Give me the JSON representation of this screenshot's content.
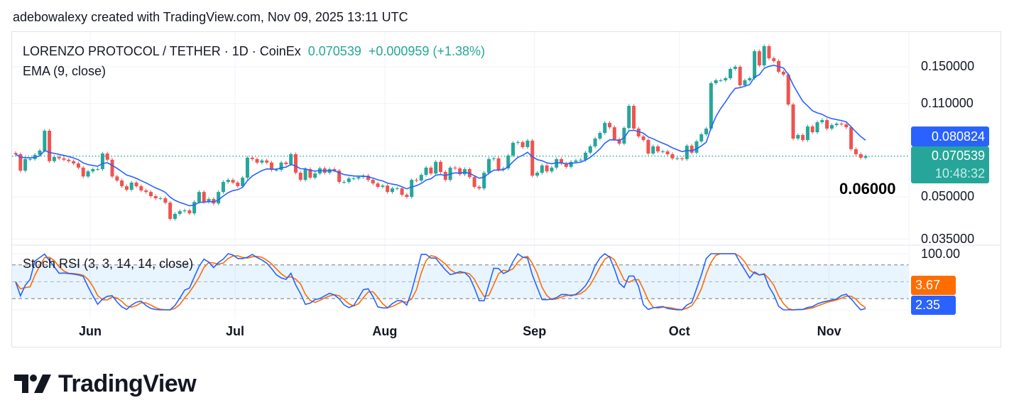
{
  "watermark": "adebowalexy created with TradingView.com, Nov 09, 2025 13:11 UTC",
  "legend": {
    "symbol": "LORENZO PROTOCOL / TETHER · 1D · CoinEx",
    "price": "0.070539",
    "change": "+0.000959 (+1.38%)",
    "ema": "EMA (9, close)",
    "stoch": "Stoch RSI (3, 3, 14, 14, close)"
  },
  "price_axis": {
    "ticks": [
      "0.150000",
      "0.110000",
      "0.050000",
      "0.035000"
    ],
    "tick_values": [
      0.15,
      0.11,
      0.05,
      0.035
    ],
    "scale": "log"
  },
  "stoch_axis": {
    "ticks": [
      "100.00"
    ],
    "band": [
      20,
      80
    ],
    "mid": 50
  },
  "time_axis": {
    "ticks": [
      "Jun",
      "Jul",
      "Aug",
      "Sep",
      "Oct",
      "Nov"
    ]
  },
  "tags": {
    "ema": "0.080824",
    "last_price": "0.070539",
    "countdown": "10:48:32",
    "stoch_d": "3.67",
    "stoch_k": "2.35"
  },
  "annotation": "0.06000",
  "logo": "TradingView",
  "colors": {
    "up": "#26a69a",
    "down": "#ef5350",
    "ema": "#2962ff",
    "stoch_k": "#2962ff",
    "stoch_d": "#ff6d00"
  },
  "chart_data": {
    "type": "candlestick",
    "interval": "1D",
    "yscale": "log",
    "ylim": [
      0.032,
      0.2
    ],
    "closes": [
      0.0717,
      0.0624,
      0.0688,
      0.0688,
      0.0713,
      0.0739,
      0.0874,
      0.0676,
      0.07,
      0.0692,
      0.0684,
      0.0676,
      0.0663,
      0.064,
      0.0594,
      0.062,
      0.0632,
      0.0632,
      0.0721,
      0.0684,
      0.0594,
      0.0574,
      0.0547,
      0.0531,
      0.0564,
      0.0547,
      0.0528,
      0.0521,
      0.0503,
      0.0494,
      0.0494,
      0.0476,
      0.0415,
      0.0433,
      0.0443,
      0.0446,
      0.0435,
      0.0479,
      0.0521,
      0.0479,
      0.0491,
      0.0473,
      0.0521,
      0.0567,
      0.0577,
      0.0564,
      0.0547,
      0.0588,
      0.0696,
      0.0688,
      0.0668,
      0.068,
      0.0668,
      0.0628,
      0.0628,
      0.0668,
      0.0659,
      0.0717,
      0.0613,
      0.0577,
      0.0632,
      0.0588,
      0.0609,
      0.0636,
      0.0613,
      0.0632,
      0.0624,
      0.0567,
      0.0567,
      0.0584,
      0.0584,
      0.0591,
      0.0598,
      0.0577,
      0.056,
      0.0544,
      0.055,
      0.0521,
      0.0537,
      0.0537,
      0.0509,
      0.05,
      0.0577,
      0.0574,
      0.0602,
      0.064,
      0.0609,
      0.0672,
      0.0617,
      0.0577,
      0.064,
      0.0636,
      0.0605,
      0.0632,
      0.0591,
      0.0544,
      0.0537,
      0.0613,
      0.0688,
      0.0692,
      0.0628,
      0.0636,
      0.0709,
      0.0789,
      0.0794,
      0.0761,
      0.0804,
      0.0598,
      0.0613,
      0.0652,
      0.062,
      0.064,
      0.0688,
      0.0663,
      0.0644,
      0.0672,
      0.068,
      0.0684,
      0.0726,
      0.0766,
      0.0818,
      0.0858,
      0.0934,
      0.09,
      0.0813,
      0.0784,
      0.0895,
      0.1078,
      0.089,
      0.0833,
      0.0808,
      0.0721,
      0.0766,
      0.0734,
      0.0734,
      0.0717,
      0.0692,
      0.0692,
      0.0688,
      0.077,
      0.0726,
      0.0799,
      0.0848,
      0.089,
      0.1306,
      0.1338,
      0.1338,
      0.1362,
      0.1473,
      0.15,
      0.1283,
      0.1338,
      0.1362,
      0.1711,
      0.1518,
      0.1785,
      0.1612,
      0.1574,
      0.1438,
      0.1404,
      0.1091,
      0.0818,
      0.0843,
      0.0808,
      0.0906,
      0.0863,
      0.0939,
      0.0956,
      0.089,
      0.0917,
      0.0928,
      0.0922,
      0.09,
      0.0748,
      0.0717,
      0.06958,
      0.070539
    ],
    "last_price": 0.070539,
    "ema_last": 0.080824,
    "stoch_k_last": 2.35,
    "stoch_d_last": 3.67
  }
}
